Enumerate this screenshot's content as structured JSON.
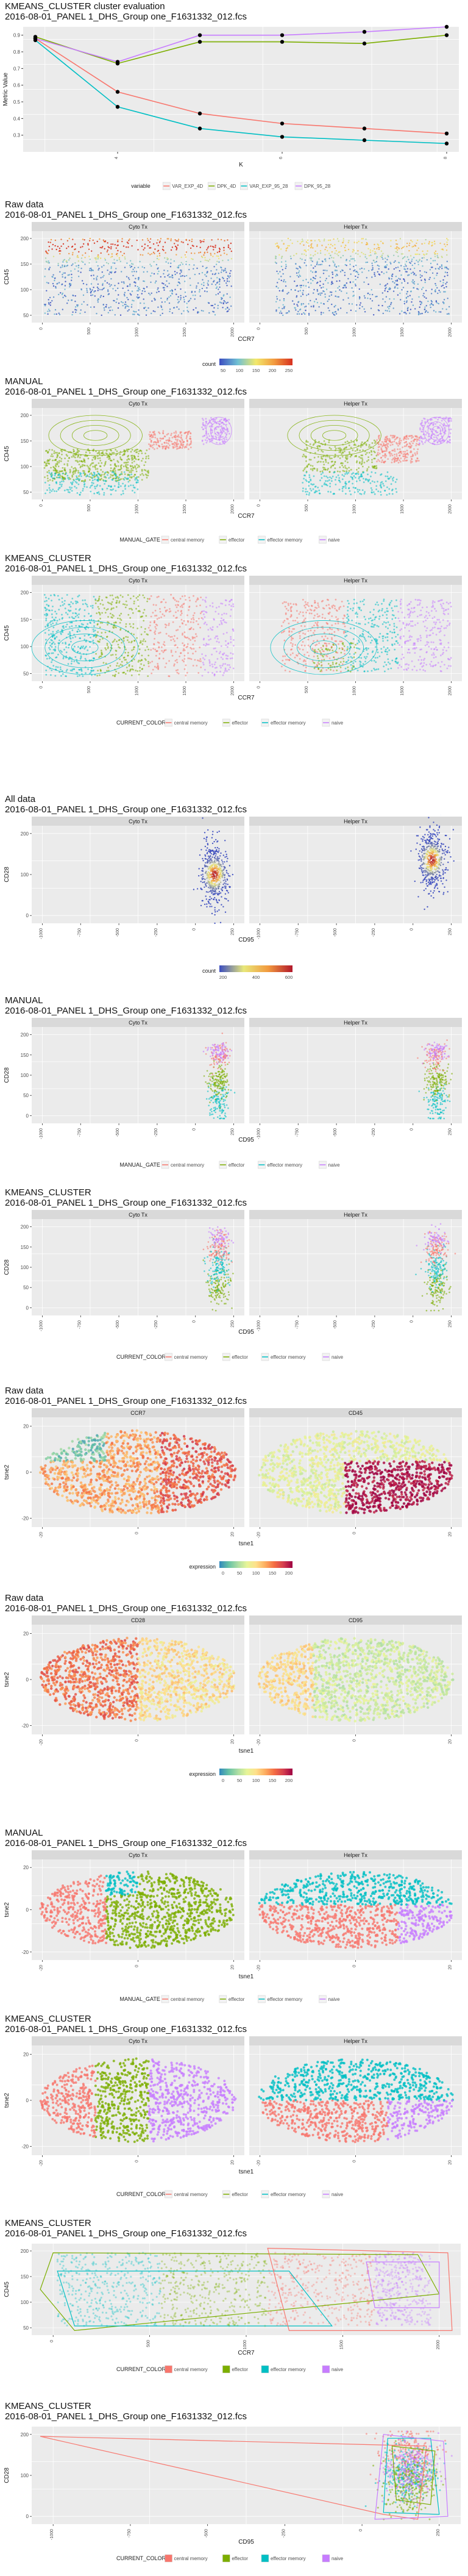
{
  "figures": [
    {
      "id": "eval",
      "title_lines": [
        "KMEANS_CLUSTER cluster evaluation",
        "2016-08-01_PANEL 1_DHS_Group one_F1631332_012.fcs"
      ],
      "chart_data": {
        "type": "line",
        "xlabel": "K",
        "ylabel": "Metric Value",
        "x": [
          3,
          4,
          5,
          6,
          7,
          8
        ],
        "xticks": [
          "4",
          "6",
          "8"
        ],
        "yticks": [
          "0.3",
          "0.4",
          "0.5",
          "0.6",
          "0.7",
          "0.8",
          "0.9"
        ],
        "ylim": [
          0.2,
          0.95
        ],
        "legend_title": "variable",
        "series": [
          {
            "name": "VAR_EXP_4D",
            "color": "#F8766D",
            "values": [
              0.88,
              0.56,
              0.43,
              0.37,
              0.34,
              0.31
            ]
          },
          {
            "name": "DPK_4D",
            "color": "#7CAE00",
            "values": [
              0.89,
              0.73,
              0.86,
              0.86,
              0.85,
              0.9
            ]
          },
          {
            "name": "VAR_EXP_95_28",
            "color": "#00BFC4",
            "values": [
              0.87,
              0.47,
              0.34,
              0.29,
              0.27,
              0.25
            ]
          },
          {
            "name": "DPK_95_28",
            "color": "#C77CFF",
            "values": [
              0.88,
              0.74,
              0.9,
              0.9,
              0.92,
              0.95
            ]
          }
        ]
      }
    },
    {
      "id": "raw-ccr7",
      "title_lines": [
        "Raw data",
        "2016-08-01_PANEL 1_DHS_Group one_F1631332_012.fcs"
      ],
      "chart_data": {
        "type": "scatter",
        "xlabel": "CCR7",
        "ylabel": "CD45",
        "panels": [
          "Cyto Tx",
          "Helper Tx"
        ],
        "xticks": [
          "0",
          "500",
          "1000",
          "1500",
          "2000"
        ],
        "yticks": [
          "50",
          "100",
          "150",
          "200"
        ],
        "legend_title": "count",
        "legend_labels": [
          "50",
          "100",
          "150",
          "200",
          "250"
        ]
      }
    },
    {
      "id": "manual-ccr7",
      "title_lines": [
        "MANUAL",
        "2016-08-01_PANEL 1_DHS_Group one_F1631332_012.fcs"
      ],
      "chart_data": {
        "type": "scatter",
        "xlabel": "CCR7",
        "ylabel": "CD45",
        "panels": [
          "Cyto Tx",
          "Helper Tx"
        ],
        "xticks": [
          "0",
          "500",
          "1000",
          "1500",
          "2000"
        ],
        "yticks": [
          "50",
          "100",
          "150",
          "200"
        ],
        "legend_title": "MANUAL_GATE",
        "series": [
          {
            "name": "central memory",
            "color": "#F8766D"
          },
          {
            "name": "effector",
            "color": "#7CAE00"
          },
          {
            "name": "effector memory",
            "color": "#00BFC4"
          },
          {
            "name": "naive",
            "color": "#C77CFF"
          }
        ]
      }
    },
    {
      "id": "kmeans-ccr7",
      "title_lines": [
        "KMEANS_CLUSTER",
        "2016-08-01_PANEL 1_DHS_Group one_F1631332_012.fcs"
      ],
      "chart_data": {
        "type": "scatter",
        "xlabel": "CCR7",
        "ylabel": "CD45",
        "panels": [
          "Cyto Tx",
          "Helper Tx"
        ],
        "xticks": [
          "0",
          "500",
          "1000",
          "1500",
          "2000"
        ],
        "yticks": [
          "50",
          "100",
          "150",
          "200"
        ],
        "legend_title": "CURRENT_COLOR",
        "series": [
          {
            "name": "central memory",
            "color": "#F8766D"
          },
          {
            "name": "effector",
            "color": "#7CAE00"
          },
          {
            "name": "effector memory",
            "color": "#00BFC4"
          },
          {
            "name": "naive",
            "color": "#C77CFF"
          }
        ]
      }
    },
    {
      "id": "all-cd95",
      "title_lines": [
        "All data",
        "2016-08-01_PANEL 1_DHS_Group one_F1631332_012.fcs"
      ],
      "chart_data": {
        "type": "scatter",
        "xlabel": "CD95",
        "ylabel": "CD28",
        "panels": [
          "Cyto Tx",
          "Helper Tx"
        ],
        "xticks": [
          "-1000",
          "-750",
          "-500",
          "-250",
          "0",
          "250"
        ],
        "yticks": [
          "0",
          "100",
          "200"
        ],
        "legend_title": "count",
        "legend_labels": [
          "200",
          "400",
          "600"
        ]
      }
    },
    {
      "id": "manual-cd95",
      "title_lines": [
        "MANUAL",
        "2016-08-01_PANEL 1_DHS_Group one_F1631332_012.fcs"
      ],
      "chart_data": {
        "type": "scatter",
        "xlabel": "CD95",
        "ylabel": "CD28",
        "panels": [
          "Cyto Tx",
          "Helper Tx"
        ],
        "xticks": [
          "-1000",
          "-750",
          "-500",
          "-250",
          "0",
          "250"
        ],
        "yticks": [
          "0",
          "50",
          "100",
          "150",
          "200"
        ],
        "legend_title": "MANUAL_GATE",
        "series": [
          {
            "name": "central memory",
            "color": "#F8766D"
          },
          {
            "name": "effector",
            "color": "#7CAE00"
          },
          {
            "name": "effector memory",
            "color": "#00BFC4"
          },
          {
            "name": "naive",
            "color": "#C77CFF"
          }
        ]
      }
    },
    {
      "id": "kmeans-cd95",
      "title_lines": [
        "KMEANS_CLUSTER",
        "2016-08-01_PANEL 1_DHS_Group one_F1631332_012.fcs"
      ],
      "chart_data": {
        "type": "scatter",
        "xlabel": "CD95",
        "ylabel": "CD28",
        "panels": [
          "Cyto Tx",
          "Helper Tx"
        ],
        "xticks": [
          "-1000",
          "-750",
          "-500",
          "-250",
          "0",
          "250"
        ],
        "yticks": [
          "0",
          "50",
          "100",
          "150",
          "200"
        ],
        "legend_title": "CURRENT_COLOR",
        "series": [
          {
            "name": "central memory",
            "color": "#F8766D"
          },
          {
            "name": "effector",
            "color": "#7CAE00"
          },
          {
            "name": "effector memory",
            "color": "#00BFC4"
          },
          {
            "name": "naive",
            "color": "#C77CFF"
          }
        ]
      }
    },
    {
      "id": "raw-tsne-a",
      "title_lines": [
        "Raw data",
        "2016-08-01_PANEL 1_DHS_Group one_F1631332_012.fcs"
      ],
      "chart_data": {
        "type": "scatter",
        "xlabel": "tsne1",
        "ylabel": "tsne2",
        "panels": [
          "CCR7",
          "CD45"
        ],
        "xticks": [
          "-20",
          "0",
          "20"
        ],
        "yticks": [
          "-20",
          "0",
          "20"
        ],
        "legend_title": "expression",
        "legend_labels": [
          "0",
          "50",
          "100",
          "150",
          "200"
        ]
      }
    },
    {
      "id": "raw-tsne-b",
      "title_lines": [
        "Raw data",
        "2016-08-01_PANEL 1_DHS_Group one_F1631332_012.fcs"
      ],
      "chart_data": {
        "type": "scatter",
        "xlabel": "tsne1",
        "ylabel": "tsne2",
        "panels": [
          "CD28",
          "CD95"
        ],
        "xticks": [
          "-20",
          "0",
          "20"
        ],
        "yticks": [
          "-20",
          "0",
          "20"
        ],
        "legend_title": "expression",
        "legend_labels": [
          "0",
          "50",
          "100",
          "150",
          "200"
        ]
      }
    },
    {
      "id": "manual-tsne",
      "title_lines": [
        "MANUAL",
        "2016-08-01_PANEL 1_DHS_Group one_F1631332_012.fcs"
      ],
      "chart_data": {
        "type": "scatter",
        "xlabel": "tsne1",
        "ylabel": "tsne2",
        "panels": [
          "Cyto Tx",
          "Helper Tx"
        ],
        "xticks": [
          "-20",
          "0",
          "20"
        ],
        "yticks": [
          "-20",
          "0",
          "20"
        ],
        "legend_title": "MANUAL_GATE",
        "series": [
          {
            "name": "central memory",
            "color": "#F8766D"
          },
          {
            "name": "effector",
            "color": "#7CAE00"
          },
          {
            "name": "effector memory",
            "color": "#00BFC4"
          },
          {
            "name": "naive",
            "color": "#C77CFF"
          }
        ]
      }
    },
    {
      "id": "kmeans-tsne",
      "title_lines": [
        "KMEANS_CLUSTER",
        "2016-08-01_PANEL 1_DHS_Group one_F1631332_012.fcs"
      ],
      "chart_data": {
        "type": "scatter",
        "xlabel": "tsne1",
        "ylabel": "tsne2",
        "panels": [
          "Cyto Tx",
          "Helper Tx"
        ],
        "xticks": [
          "-20",
          "0",
          "20"
        ],
        "yticks": [
          "-20",
          "0",
          "20"
        ],
        "legend_title": "CURRENT_COLOR",
        "series": [
          {
            "name": "central memory",
            "color": "#F8766D"
          },
          {
            "name": "effector",
            "color": "#7CAE00"
          },
          {
            "name": "effector memory",
            "color": "#00BFC4"
          },
          {
            "name": "naive",
            "color": "#C77CFF"
          }
        ]
      }
    },
    {
      "id": "kmeans-hull-ccr7",
      "title_lines": [
        "KMEANS_CLUSTER",
        "2016-08-01_PANEL 1_DHS_Group one_F1631332_012.fcs"
      ],
      "chart_data": {
        "type": "scatter",
        "xlabel": "CCR7",
        "ylabel": "CD45",
        "xticks": [
          "0",
          "500",
          "1000",
          "1500",
          "2000"
        ],
        "yticks": [
          "50",
          "100",
          "150",
          "200"
        ],
        "legend_title": "CURRENT_COLOR",
        "series": [
          {
            "name": "central memory",
            "color": "#F8766D"
          },
          {
            "name": "effector",
            "color": "#7CAE00"
          },
          {
            "name": "effector memory",
            "color": "#00BFC4"
          },
          {
            "name": "naive",
            "color": "#C77CFF"
          }
        ]
      }
    },
    {
      "id": "kmeans-hull-cd95",
      "title_lines": [
        "KMEANS_CLUSTER",
        "2016-08-01_PANEL 1_DHS_Group one_F1631332_012.fcs"
      ],
      "chart_data": {
        "type": "scatter",
        "xlabel": "CD95",
        "ylabel": "CD28",
        "xticks": [
          "-1000",
          "-750",
          "-500",
          "-250",
          "0",
          "250"
        ],
        "yticks": [
          "0",
          "100",
          "200"
        ],
        "legend_title": "CURRENT_COLOR",
        "series": [
          {
            "name": "central memory",
            "color": "#F8766D"
          },
          {
            "name": "effector",
            "color": "#7CAE00"
          },
          {
            "name": "effector memory",
            "color": "#00BFC4"
          },
          {
            "name": "naive",
            "color": "#C77CFF"
          }
        ]
      }
    }
  ]
}
